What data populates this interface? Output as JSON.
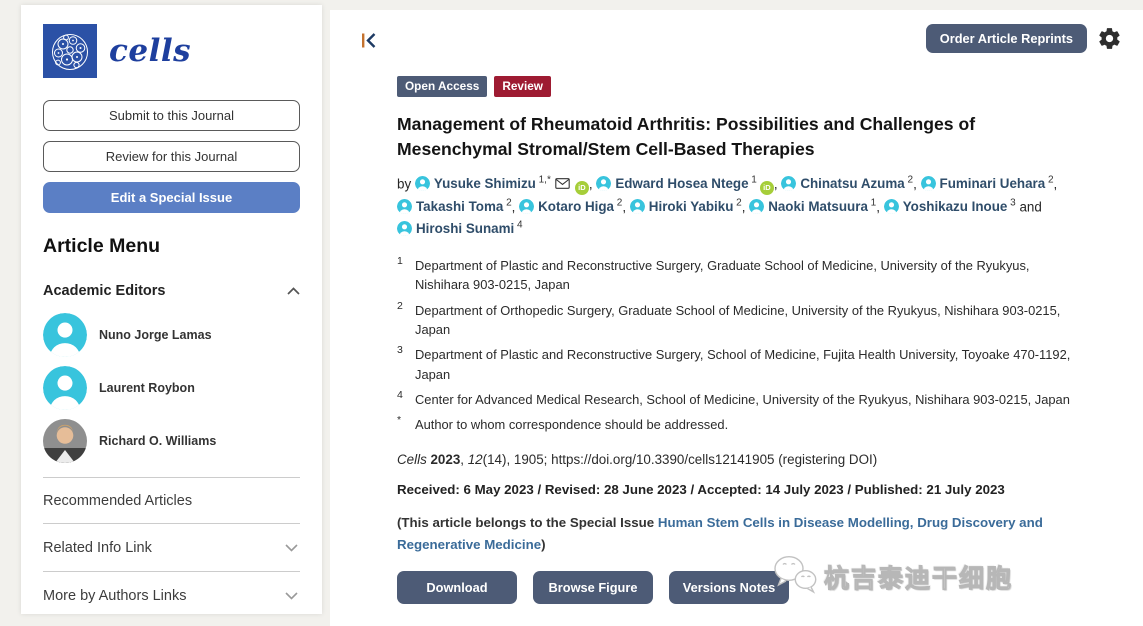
{
  "colors": {
    "accent_slate": "#4d5b76",
    "crimson": "#9e1b32",
    "sidebar_blue": "#5b7fc5",
    "avatar_cyan": "#38c4dd",
    "orcid_green": "#a6ce39",
    "link_blue": "#3a6b99",
    "logo_blue": "#2b51a6"
  },
  "sidebar": {
    "logo_text": "cells",
    "buttons": [
      {
        "label": "Submit to this Journal",
        "style": "outline"
      },
      {
        "label": "Review for this Journal",
        "style": "outline"
      },
      {
        "label": "Edit a Special Issue",
        "style": "primary"
      }
    ],
    "article_menu_title": "Article Menu",
    "academic_editors": {
      "title": "Academic Editors",
      "editors": [
        {
          "name": "Nuno Jorge Lamas",
          "avatar": "placeholder"
        },
        {
          "name": "Laurent Roybon",
          "avatar": "placeholder"
        },
        {
          "name": "Richard O. Williams",
          "avatar": "photo"
        }
      ]
    },
    "links": [
      {
        "label": "Recommended Articles",
        "chevron": false
      },
      {
        "label": "Related Info Link",
        "chevron": true
      },
      {
        "label": "More by Authors Links",
        "chevron": true
      }
    ]
  },
  "toolbar": {
    "order_reprints_label": "Order Article Reprints"
  },
  "article": {
    "badges": [
      {
        "label": "Open Access",
        "color": "#4d5b76"
      },
      {
        "label": "Review",
        "color": "#9e1b32"
      }
    ],
    "title": "Management of Rheumatoid Arthritis: Possibilities and Challenges of Mesenchymal Stromal/Stem Cell-Based Therapies",
    "by_label": "by",
    "authors": [
      {
        "name": "Yusuke Shimizu",
        "sup": "1,*",
        "email": true,
        "orcid": true,
        "sep": ", "
      },
      {
        "name": "Edward Hosea Ntege",
        "sup": "1",
        "orcid": true,
        "sep": ", "
      },
      {
        "name": "Chinatsu Azuma",
        "sup": "2",
        "sep": ", "
      },
      {
        "name": "Fuminari Uehara",
        "sup": "2",
        "sep": ", "
      },
      {
        "name": "Takashi Toma",
        "sup": "2",
        "sep": ", "
      },
      {
        "name": "Kotaro Higa",
        "sup": "2",
        "sep": ", "
      },
      {
        "name": "Hiroki Yabiku",
        "sup": "2",
        "sep": ", "
      },
      {
        "name": "Naoki Matsuura",
        "sup": "1",
        "sep": ", "
      },
      {
        "name": "Yoshikazu Inoue",
        "sup": "3",
        "sep": " and "
      },
      {
        "name": "Hiroshi Sunami",
        "sup": "4",
        "sep": ""
      }
    ],
    "affiliations": [
      {
        "marker": "1",
        "text": "Department of Plastic and Reconstructive Surgery, Graduate School of Medicine, University of the Ryukyus, Nishihara 903-0215, Japan"
      },
      {
        "marker": "2",
        "text": "Department of Orthopedic Surgery, Graduate School of Medicine, University of the Ryukyus, Nishihara 903-0215, Japan"
      },
      {
        "marker": "3",
        "text": "Department of Plastic and Reconstructive Surgery, School of Medicine, Fujita Health University, Toyoake 470-1192, Japan"
      },
      {
        "marker": "4",
        "text": "Center for Advanced Medical Research, School of Medicine, University of the Ryukyus, Nishihara 903-0215, Japan"
      },
      {
        "marker": "*",
        "text": "Author to whom correspondence should be addressed."
      }
    ],
    "citation": {
      "journal": "Cells ",
      "year": "2023",
      "comma": ", ",
      "volume": "12",
      "rest": "(14), 1905; ",
      "doi": "https://doi.org/10.3390/cells12141905",
      "note": " (registering DOI)"
    },
    "dates": "Received: 6 May 2023 / Revised: 28 June 2023 / Accepted: 14 July 2023 / Published: 21 July 2023",
    "special_issue": {
      "prefix": "(This article belongs to the Special Issue ",
      "link": "Human Stem Cells in Disease Modelling, Drug Discovery and Regenerative Medicine",
      "suffix": ")"
    },
    "action_buttons": [
      "Download",
      "Browse Figure",
      "Versions Notes"
    ]
  },
  "watermark": {
    "text": "杭吉泰迪干细胞"
  }
}
